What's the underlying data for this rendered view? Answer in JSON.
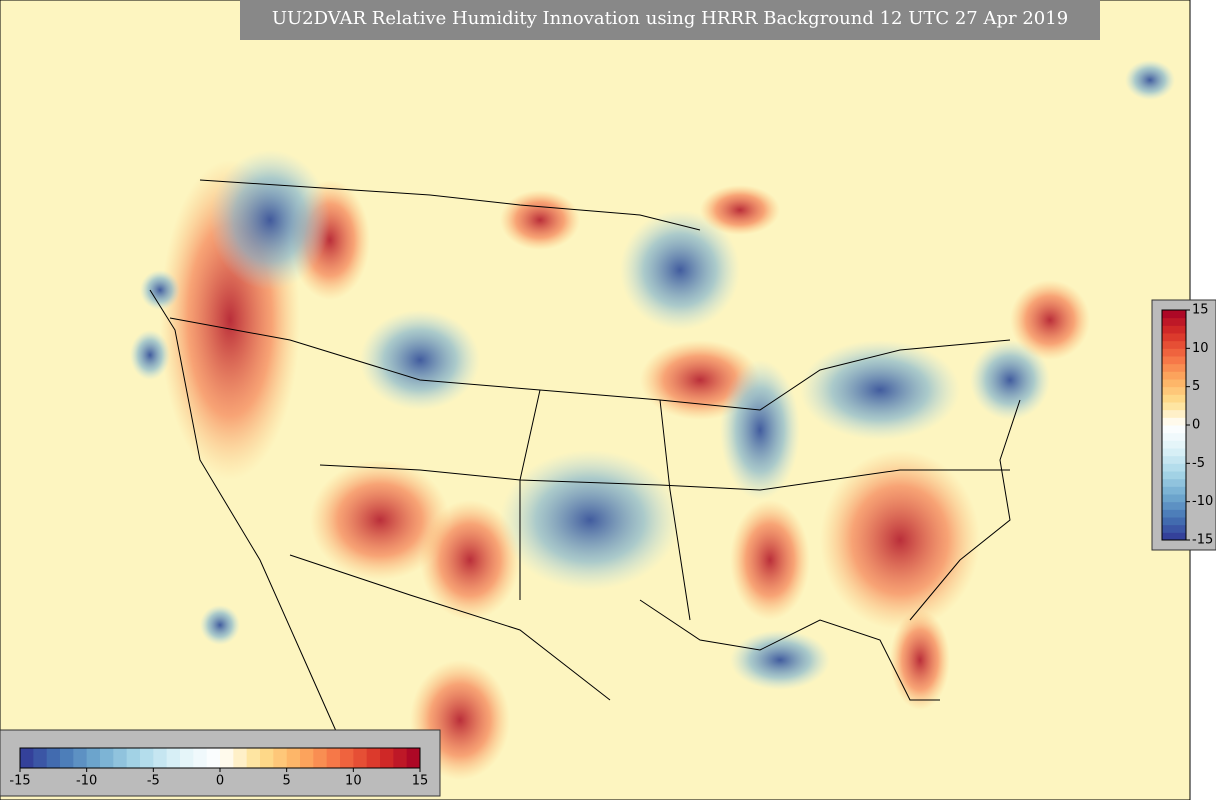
{
  "title": "UU2DVAR Relative Humidity Innovation using HRRR Background 12 UTC 27 Apr 2019",
  "colorbar_vertical": {
    "lim": [
      -15,
      15
    ],
    "ticks": [
      15,
      10,
      5,
      0,
      -5,
      -10,
      -15
    ],
    "levels": 30,
    "colormap": [
      "#313695",
      "#4575b4",
      "#74add1",
      "#abd9e9",
      "#e0f3f8",
      "#ffffff",
      "#fee090",
      "#fdae61",
      "#f46d43",
      "#d73027",
      "#a50026"
    ]
  },
  "colorbar_horizontal": {
    "lim": [
      -15,
      15
    ],
    "ticks": [
      -15,
      -10,
      -5,
      0,
      5,
      10,
      15
    ],
    "levels": 30,
    "colormap": [
      "#313695",
      "#4575b4",
      "#74add1",
      "#abd9e9",
      "#e0f3f8",
      "#ffffff",
      "#fee090",
      "#fdae61",
      "#f46d43",
      "#d73027",
      "#a50026"
    ]
  }
}
